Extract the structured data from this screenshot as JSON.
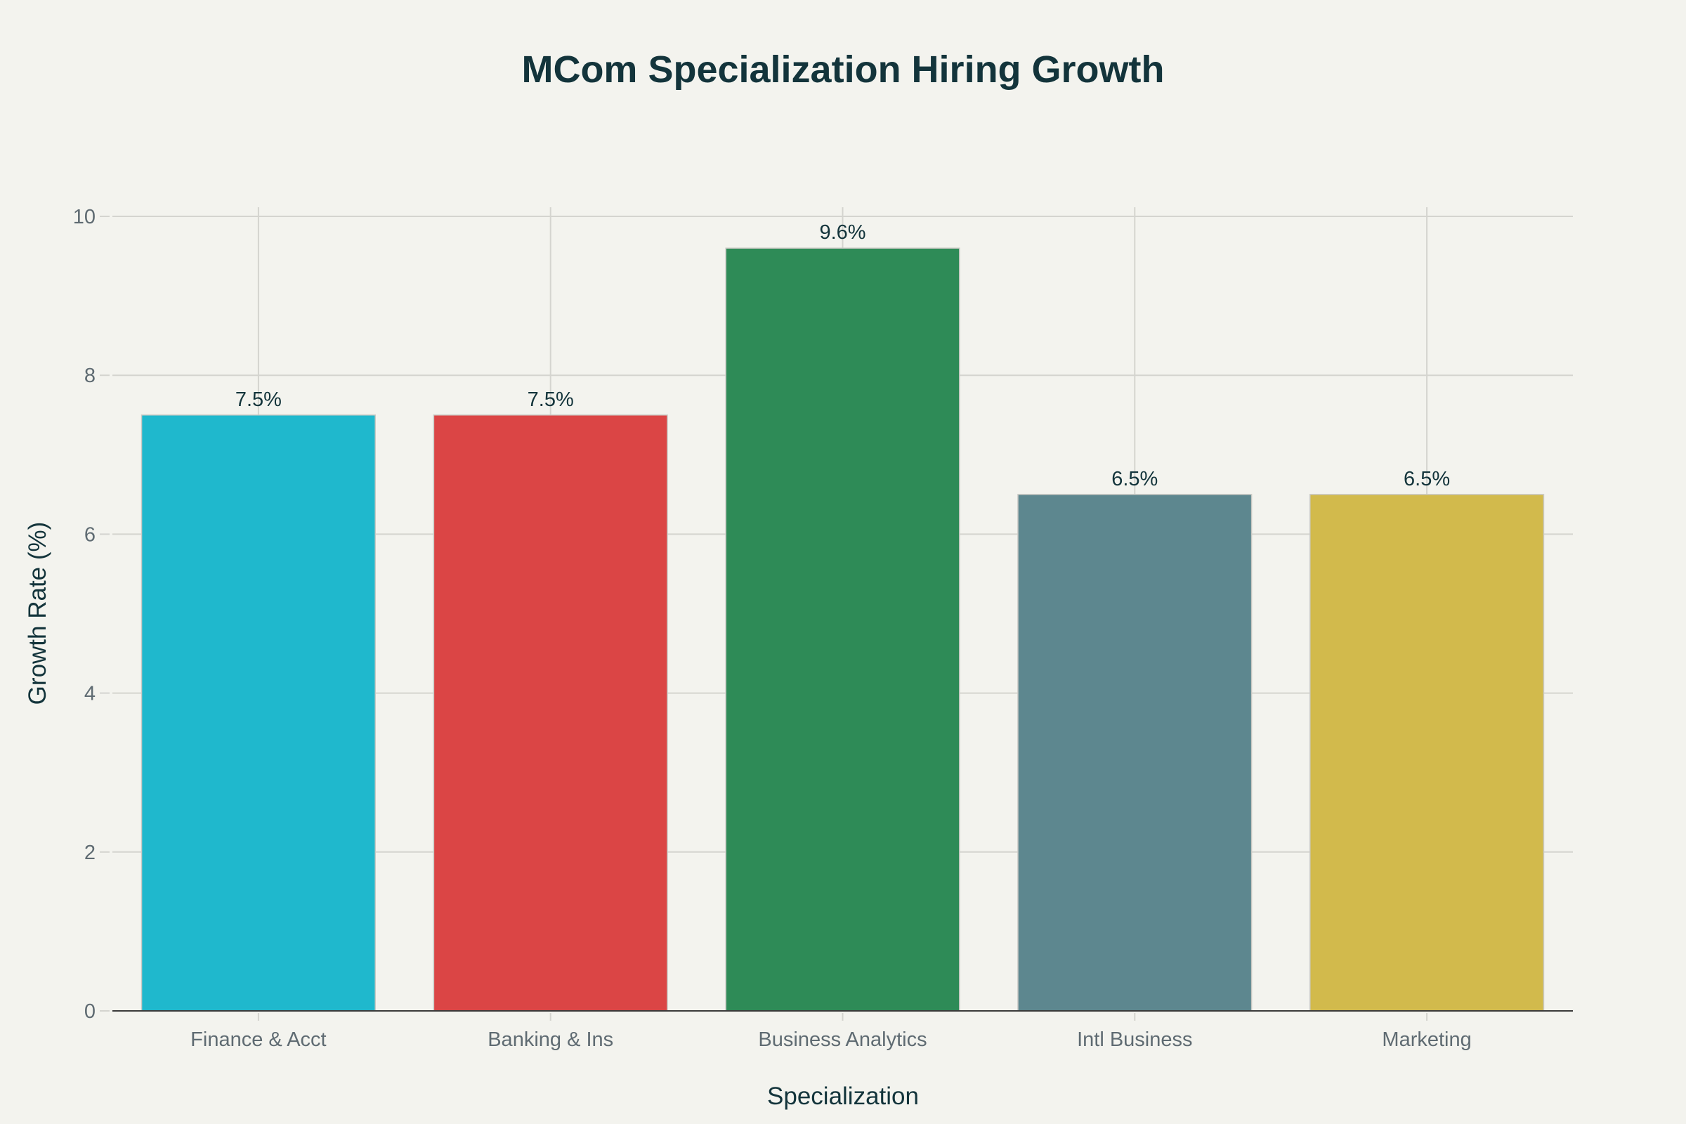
{
  "chart_data": {
    "type": "bar",
    "title": "MCom Specialization Hiring Growth",
    "xlabel": "Specialization",
    "ylabel": "Growth Rate (%)",
    "categories": [
      "Finance & Acct",
      "Banking & Ins",
      "Business Analytics",
      "Intl Business",
      "Marketing"
    ],
    "values": [
      7.5,
      7.5,
      9.6,
      6.5,
      6.5
    ],
    "data_labels": [
      "7.5%",
      "7.5%",
      "9.6%",
      "6.5%",
      "6.5%"
    ],
    "colors": [
      "#1fb8cd",
      "#db4545",
      "#2e8b57",
      "#5d878f",
      "#d2ba4c"
    ],
    "ylim": [
      0,
      10
    ],
    "yticks": [
      "0",
      "2",
      "4",
      "6",
      "8",
      "10"
    ],
    "grid": true,
    "legend": "none"
  }
}
